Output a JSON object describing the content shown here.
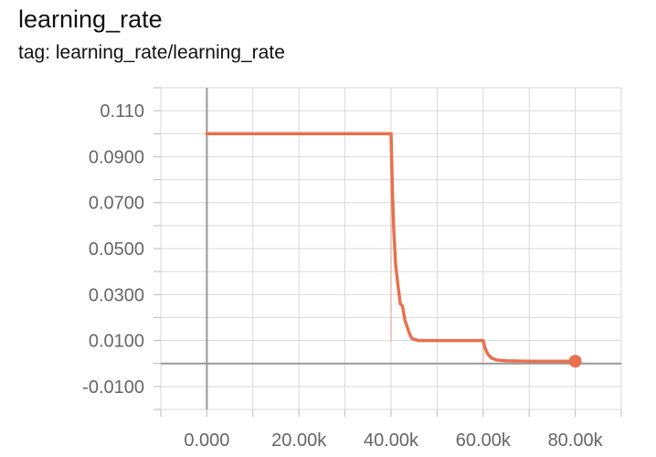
{
  "header": {
    "title": "learning_rate",
    "tag": "tag: learning_rate/learning_rate"
  },
  "chart_data": {
    "type": "line",
    "title": "learning_rate",
    "subtitle": "tag: learning_rate/learning_rate",
    "xlabel": "",
    "ylabel": "",
    "xlim": [
      -10000,
      90000
    ],
    "ylim": [
      -0.02,
      0.12
    ],
    "grid": true,
    "legend": "none",
    "x_ticks": [
      0,
      20000,
      40000,
      60000,
      80000
    ],
    "x_tick_labels": [
      "0.000",
      "20.00k",
      "40.00k",
      "60.00k",
      "80.00k"
    ],
    "y_ticks": [
      -0.01,
      0.01,
      0.03,
      0.05,
      0.07,
      0.09,
      0.11
    ],
    "y_tick_labels": [
      "-0.0100",
      "0.0100",
      "0.0300",
      "0.0500",
      "0.0700",
      "0.0900",
      "0.110"
    ],
    "colors": {
      "line": "#e8714f",
      "axis": "#999999",
      "grid": "#d9d9d9"
    },
    "series": [
      {
        "x": [
          0,
          40000,
          40300,
          40600,
          41000,
          41500,
          42000,
          42500,
          43000,
          43500,
          44000,
          44500,
          45000,
          46000,
          50000,
          55000,
          60000,
          60300,
          60600,
          61000,
          61500,
          62000,
          63000,
          65000,
          70000,
          75000,
          80000
        ],
        "y": [
          0.1,
          0.1,
          0.075,
          0.058,
          0.043,
          0.034,
          0.026,
          0.025,
          0.019,
          0.016,
          0.013,
          0.011,
          0.0105,
          0.01,
          0.01,
          0.01,
          0.01,
          0.0075,
          0.0058,
          0.0042,
          0.003,
          0.0022,
          0.0015,
          0.0012,
          0.001,
          0.001,
          0.001
        ]
      }
    ]
  }
}
